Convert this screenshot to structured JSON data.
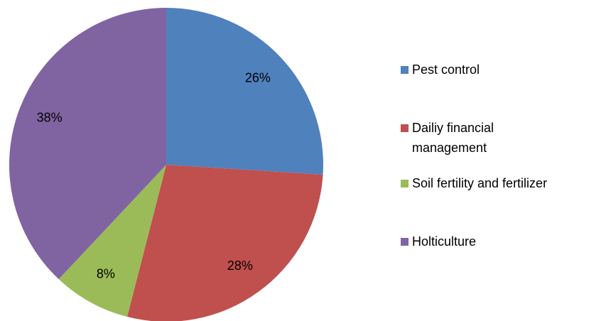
{
  "chart_data": {
    "type": "pie",
    "categories": [
      "Pest control",
      "Dailiy financial management",
      "Soil fertility and fertilizer",
      "Holticulture"
    ],
    "values": [
      26,
      28,
      8,
      38
    ],
    "value_labels": [
      "26%",
      "28%",
      "8%",
      "38%"
    ],
    "colors": [
      "#4f81bd",
      "#c0504d",
      "#9bbb59",
      "#8064a2"
    ],
    "legend": "right"
  }
}
